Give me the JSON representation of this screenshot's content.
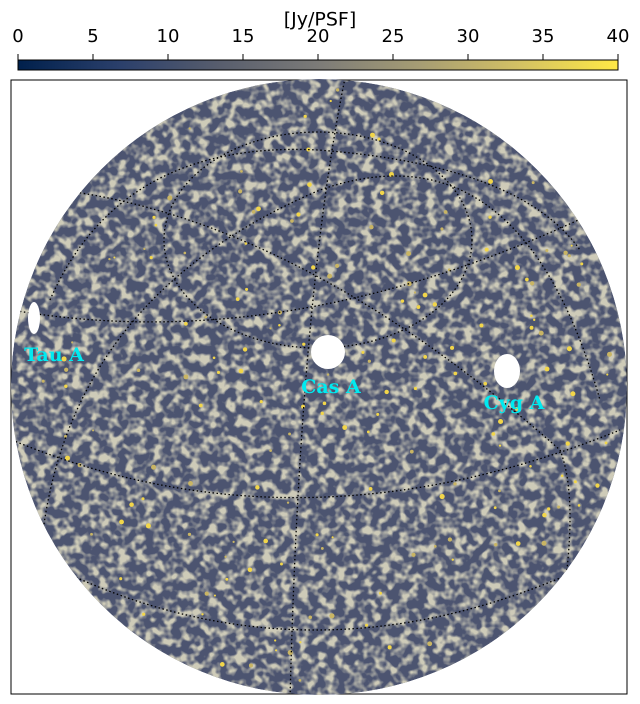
{
  "chart_data": {
    "type": "skymap",
    "colorbar": {
      "label": "[Jy/PSF]",
      "lim": [
        0,
        40
      ],
      "ticks": [
        0,
        5,
        10,
        15,
        20,
        25,
        30,
        35,
        40
      ],
      "colormap": "cividis"
    },
    "annotations": [
      "Tau A",
      "Cas A",
      "Cyg A"
    ],
    "annotation_color": "#00eaf0"
  }
}
